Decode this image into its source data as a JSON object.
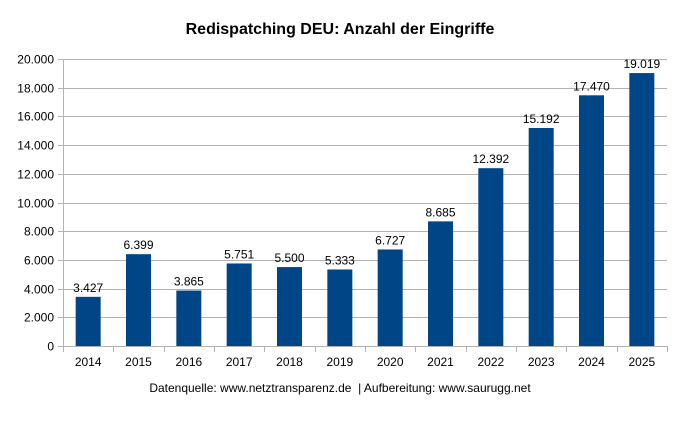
{
  "chart_data": {
    "type": "bar",
    "title": "Redispatching DEU: Anzahl der Eingriffe",
    "categories": [
      "2014",
      "2015",
      "2016",
      "2017",
      "2018",
      "2019",
      "2020",
      "2021",
      "2022",
      "2023",
      "2024",
      "2025"
    ],
    "values": [
      3427,
      6399,
      3865,
      5751,
      5500,
      5333,
      6727,
      8685,
      12392,
      15192,
      17470,
      19019
    ],
    "data_labels": [
      "3.427",
      "6.399",
      "3.865",
      "5.751",
      "5.500",
      "5.333",
      "6.727",
      "8.685",
      "12.392",
      "15.192",
      "17.470",
      "19.019"
    ],
    "ylim": [
      0,
      20000
    ],
    "yticks": [
      "0",
      "2.000",
      "4.000",
      "6.000",
      "8.000",
      "10.000",
      "12.000",
      "14.000",
      "16.000",
      "18.000",
      "20.000"
    ],
    "grid": true,
    "bar_color": "#004586",
    "footer": "Datenquelle: www.netztransparenz.de  | Aufbereitung: www.saurugg.net"
  }
}
